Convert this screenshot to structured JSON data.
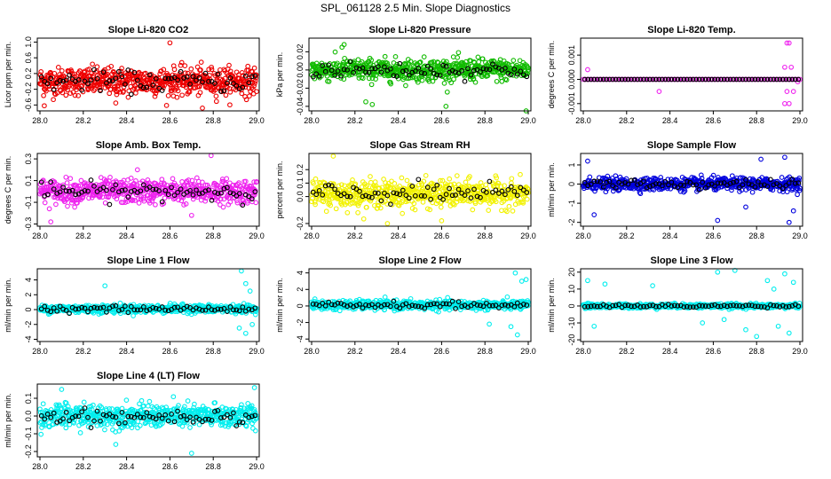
{
  "suptitle": "SPL_061128  2.5 Min. Slope Diagnostics",
  "x_ticks": [
    "28.0",
    "28.2",
    "28.4",
    "28.6",
    "28.8",
    "29.0"
  ],
  "colors": {
    "red": "#ee0000",
    "green": "#11bb00",
    "magenta": "#ee22ee",
    "yellow": "#f2f200",
    "blue": "#0000dd",
    "cyan": "#00eeee",
    "black": "#000000"
  },
  "chart_data": [
    {
      "type": "scatter",
      "title": "Slope Li-820 CO2",
      "ylabel": "Licor ppm per min.",
      "xlim": [
        28.0,
        29.0
      ],
      "ylim": [
        -0.75,
        1.1
      ],
      "yticks": [
        "-0.6",
        "-0.2",
        "0.2",
        "0.6",
        "1.0"
      ],
      "ytick_values": [
        -0.6,
        -0.2,
        0.2,
        0.6,
        1.0
      ],
      "color": "red",
      "center": 0.0,
      "spread": 0.32,
      "count": 600,
      "outliers": [
        [
          28.02,
          -0.62
        ],
        [
          28.6,
          0.98
        ],
        [
          28.35,
          -0.55
        ],
        [
          28.75,
          -0.68
        ]
      ]
    },
    {
      "type": "scatter",
      "title": "Slope Li-820 Pressure",
      "ylabel": "kPa per min.",
      "xlim": [
        28.0,
        29.0
      ],
      "ylim": [
        -0.045,
        0.035
      ],
      "yticks": [
        "-0.04",
        "-0.02",
        "0.00",
        "0.02"
      ],
      "ytick_values": [
        -0.04,
        -0.02,
        0.0,
        0.02
      ],
      "color": "green",
      "center": 0.0,
      "spread": 0.011,
      "count": 600,
      "outliers": [
        [
          28.14,
          0.025
        ],
        [
          28.15,
          0.028
        ],
        [
          28.25,
          -0.035
        ],
        [
          28.62,
          -0.04
        ],
        [
          28.99,
          -0.045
        ],
        [
          28.28,
          -0.038
        ]
      ]
    },
    {
      "type": "scatter",
      "title": "Slope Li-820 Temp.",
      "ylabel": "degrees C per min.",
      "xlim": [
        28.0,
        29.0
      ],
      "ylim": [
        -0.0013,
        0.0017
      ],
      "yticks": [
        "-0.001",
        "0.000",
        "0.001"
      ],
      "ytick_values": [
        -0.001,
        0.0,
        0.001
      ],
      "color": "magenta",
      "center": 0.0,
      "spread": 0.0,
      "count": 110,
      "outliers": [
        [
          28.02,
          0.0004
        ],
        [
          28.35,
          -0.0005
        ],
        [
          28.94,
          0.0015
        ],
        [
          28.95,
          0.0015
        ],
        [
          28.93,
          -0.001
        ],
        [
          28.95,
          -0.001
        ],
        [
          28.93,
          0.0005
        ],
        [
          28.96,
          0.0005
        ],
        [
          28.94,
          -0.0005
        ],
        [
          28.97,
          -0.0005
        ],
        [
          28.99,
          -0.0001
        ]
      ]
    },
    {
      "type": "scatter",
      "title": "Slope Amb. Box Temp.",
      "ylabel": "degrees C per min.",
      "xlim": [
        28.0,
        29.0
      ],
      "ylim": [
        -0.32,
        0.35
      ],
      "yticks": [
        "-0.3",
        "-0.1",
        "0.1",
        "0.3"
      ],
      "ytick_values": [
        -0.3,
        -0.1,
        0.1,
        0.3
      ],
      "color": "magenta",
      "center": 0.0,
      "spread": 0.1,
      "count": 600,
      "outliers": [
        [
          28.05,
          -0.28
        ],
        [
          28.79,
          0.33
        ],
        [
          28.45,
          0.2
        ],
        [
          28.7,
          -0.22
        ]
      ]
    },
    {
      "type": "scatter",
      "title": "Slope Gas Stream RH",
      "ylabel": "percent per min.",
      "xlim": [
        28.0,
        29.0
      ],
      "ylim": [
        -0.22,
        0.32
      ],
      "yticks": [
        "-0.2",
        "0.0",
        "0.1",
        "0.2"
      ],
      "ytick_values": [
        -0.2,
        0.0,
        0.1,
        0.2
      ],
      "color": "yellow",
      "center": 0.02,
      "spread": 0.09,
      "count": 600,
      "outliers": [
        [
          28.1,
          0.3
        ],
        [
          28.35,
          -0.2
        ],
        [
          28.6,
          -0.18
        ]
      ]
    },
    {
      "type": "scatter",
      "title": "Slope Sample Flow",
      "ylabel": "ml/min per min.",
      "xlim": [
        28.0,
        29.0
      ],
      "ylim": [
        -2.2,
        1.6
      ],
      "yticks": [
        "-2",
        "-1",
        "0",
        "1"
      ],
      "ytick_values": [
        -2,
        -1,
        0,
        1
      ],
      "color": "blue",
      "center": 0.0,
      "spread": 0.3,
      "count": 600,
      "outliers": [
        [
          28.02,
          1.2
        ],
        [
          28.05,
          -1.6
        ],
        [
          28.62,
          -1.9
        ],
        [
          28.82,
          1.3
        ],
        [
          28.93,
          1.4
        ],
        [
          28.97,
          -1.4
        ],
        [
          28.75,
          -1.2
        ],
        [
          28.95,
          -2.0
        ]
      ]
    },
    {
      "type": "scatter",
      "title": "Slope Line 1 Flow",
      "ylabel": "ml/min per min.",
      "xlim": [
        28.0,
        29.0
      ],
      "ylim": [
        -4.3,
        5.5
      ],
      "yticks": [
        "-4",
        "-2",
        "0",
        "2",
        "4"
      ],
      "ytick_values": [
        -4,
        -2,
        0,
        2,
        4
      ],
      "color": "cyan",
      "center": 0.1,
      "spread": 0.5,
      "count": 600,
      "outliers": [
        [
          28.3,
          3.2
        ],
        [
          28.93,
          5.2
        ],
        [
          28.95,
          3.5
        ],
        [
          28.92,
          -2.5
        ],
        [
          28.95,
          -3.2
        ],
        [
          28.97,
          2.5
        ],
        [
          28.98,
          -2.0
        ]
      ]
    },
    {
      "type": "scatter",
      "title": "Slope Line 2 Flow",
      "ylabel": "ml/min per min.",
      "xlim": [
        28.0,
        29.0
      ],
      "ylim": [
        -4.3,
        4.5
      ],
      "yticks": [
        "-4",
        "-2",
        "0",
        "2",
        "4"
      ],
      "ytick_values": [
        -4,
        -2,
        0,
        2,
        4
      ],
      "color": "cyan",
      "center": 0.1,
      "spread": 0.5,
      "count": 600,
      "outliers": [
        [
          28.94,
          4.0
        ],
        [
          28.95,
          -3.5
        ],
        [
          28.97,
          3.0
        ],
        [
          28.92,
          -2.5
        ],
        [
          28.82,
          -2.2
        ],
        [
          28.99,
          3.2
        ]
      ]
    },
    {
      "type": "scatter",
      "title": "Slope Line 3 Flow",
      "ylabel": "ml/min per min.",
      "xlim": [
        28.0,
        29.0
      ],
      "ylim": [
        -21,
        22
      ],
      "yticks": [
        "-20",
        "-10",
        "0",
        "10",
        "20"
      ],
      "ytick_values": [
        -20,
        -10,
        0,
        10,
        20
      ],
      "color": "cyan",
      "center": 0.0,
      "spread": 1.2,
      "count": 600,
      "outliers": [
        [
          28.02,
          15
        ],
        [
          28.05,
          -12
        ],
        [
          28.1,
          13
        ],
        [
          28.32,
          12
        ],
        [
          28.55,
          -10
        ],
        [
          28.62,
          20
        ],
        [
          28.7,
          21
        ],
        [
          28.75,
          -14
        ],
        [
          28.8,
          -18
        ],
        [
          28.85,
          15
        ],
        [
          28.9,
          -12
        ],
        [
          28.93,
          19
        ],
        [
          28.95,
          -16
        ],
        [
          28.97,
          14
        ],
        [
          28.88,
          10
        ],
        [
          28.65,
          -8
        ]
      ]
    },
    {
      "type": "scatter",
      "title": "Slope Line 4 (LT) Flow",
      "ylabel": "ml/min per min.",
      "xlim": [
        28.0,
        29.0
      ],
      "ylim": [
        -0.23,
        0.18
      ],
      "yticks": [
        "-0.2",
        "-0.1",
        "0.0",
        "0.1"
      ],
      "ytick_values": [
        -0.2,
        -0.1,
        0.0,
        0.1
      ],
      "color": "cyan",
      "center": 0.0,
      "spread": 0.06,
      "count": 600,
      "outliers": [
        [
          28.7,
          -0.21
        ],
        [
          28.99,
          0.16
        ],
        [
          28.35,
          -0.16
        ],
        [
          28.1,
          0.15
        ]
      ]
    }
  ]
}
